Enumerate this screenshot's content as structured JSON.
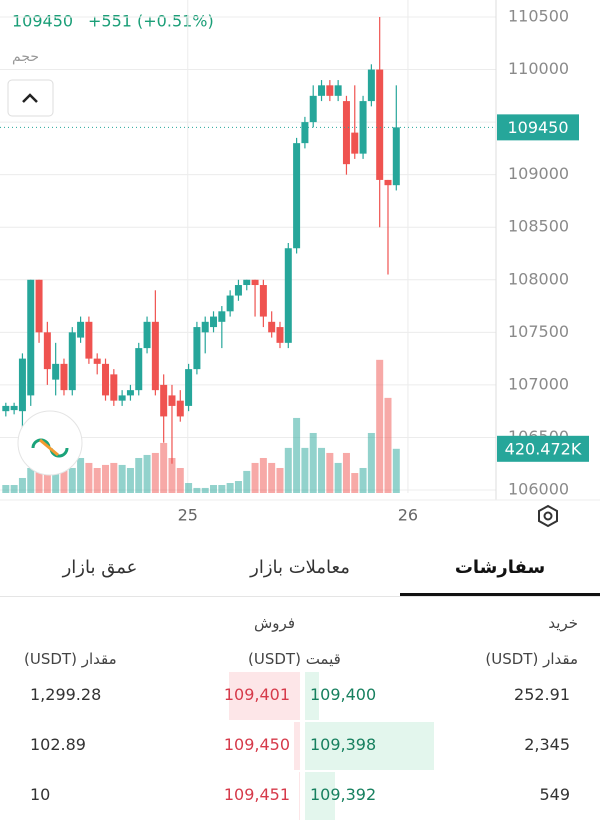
{
  "header": {
    "price": "109450",
    "change": "+551 (+0.51%)",
    "volume_label": "حجم"
  },
  "chart_data": {
    "type": "candlestick",
    "open": [
      106750,
      106760,
      106750,
      106900,
      108000,
      107500,
      107050,
      107200,
      106950,
      107450,
      107600,
      107250,
      107200,
      107100,
      106850,
      106900,
      106950,
      107350,
      107600,
      107000,
      106900,
      106850,
      106800,
      107150,
      107500,
      107550,
      107600,
      107700,
      107850,
      107950,
      108000,
      107950,
      107600,
      107550,
      107400,
      108300,
      109300,
      109500,
      109750,
      109850,
      109750,
      109700,
      109400,
      109200,
      109700,
      110000,
      108950,
      108900
    ],
    "high": [
      106830,
      106830,
      107300,
      108000,
      108000,
      107600,
      107400,
      107250,
      107550,
      107650,
      107650,
      107300,
      107250,
      107150,
      106950,
      107000,
      107400,
      107650,
      107900,
      107100,
      107000,
      106950,
      107200,
      107600,
      107650,
      107700,
      107750,
      107900,
      108000,
      108000,
      108000,
      108000,
      107700,
      107600,
      108350,
      109350,
      109550,
      109850,
      109900,
      109900,
      109900,
      109750,
      109850,
      109750,
      110050,
      110500,
      108950,
      109850
    ],
    "low": [
      106700,
      106720,
      106550,
      106800,
      107400,
      107000,
      106900,
      106900,
      106900,
      107400,
      107200,
      107100,
      106850,
      106800,
      106800,
      106850,
      106900,
      107300,
      106900,
      106450,
      106250,
      106650,
      106750,
      107100,
      107300,
      107500,
      107350,
      107650,
      107800,
      107900,
      107650,
      107550,
      107450,
      107350,
      107350,
      108250,
      109250,
      109450,
      109700,
      109700,
      109700,
      109000,
      109150,
      109150,
      109650,
      108500,
      108050,
      108850
    ],
    "close": [
      106800,
      106800,
      107250,
      108000,
      107500,
      107150,
      107200,
      106950,
      107500,
      107600,
      107250,
      107200,
      106900,
      106850,
      106900,
      106950,
      107350,
      107600,
      106950,
      106700,
      106800,
      106700,
      107150,
      107550,
      107600,
      107650,
      107700,
      107850,
      107950,
      108000,
      107950,
      107650,
      107500,
      107400,
      108300,
      109300,
      109500,
      109750,
      109850,
      109750,
      109850,
      109100,
      109200,
      109700,
      110000,
      108950,
      108900,
      109450
    ],
    "volume": [
      76,
      76,
      143,
      238,
      286,
      238,
      190,
      286,
      238,
      333,
      286,
      238,
      267,
      286,
      267,
      238,
      333,
      362,
      381,
      476,
      333,
      238,
      95,
      48,
      48,
      76,
      76,
      95,
      114,
      210,
      286,
      333,
      286,
      238,
      429,
      714,
      429,
      571,
      429,
      381,
      286,
      381,
      190,
      238,
      571,
      1267,
      905,
      420.472
    ],
    "up_color": "#26a69a",
    "down_color": "#ef5350",
    "ylim": [
      106000,
      110500
    ],
    "yticks": [
      106000,
      106500,
      107000,
      107500,
      108000,
      108500,
      109000,
      109500,
      110000,
      110500
    ],
    "vlim": [
      0,
      4500
    ],
    "xlim": [
      -0.7,
      59
    ],
    "xticks": [
      {
        "value": 21.9,
        "label": "25"
      },
      {
        "value": 48.4,
        "label": "26"
      }
    ],
    "last_price": 109450,
    "last_price_label": "109450",
    "last_volume_label": "420.472K",
    "grid": true
  },
  "tabs": [
    "سفارشات",
    "معاملات بازار",
    "عمق بازار"
  ],
  "order_book": {
    "buy_title": "خرید",
    "sell_title": "فروش",
    "col_buy_qty": "مقدار (USDT)",
    "col_price": "قیمت (USDT)",
    "col_sell_qty": "مقدار (USDT)",
    "rows": [
      [
        "1,299.28",
        "109,401",
        "109,400",
        "252.91"
      ],
      [
        "102.89",
        "109,450",
        "109,398",
        "2,345"
      ],
      [
        "10",
        "109,451",
        "109,392",
        "549"
      ]
    ]
  }
}
